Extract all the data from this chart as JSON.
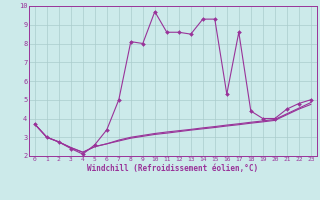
{
  "title": "",
  "xlabel": "Windchill (Refroidissement éolien,°C)",
  "background_color": "#cceaea",
  "grid_color": "#aacccc",
  "line_color": "#993399",
  "xlim": [
    -0.5,
    23.5
  ],
  "ylim": [
    2,
    10
  ],
  "xticks": [
    0,
    1,
    2,
    3,
    4,
    5,
    6,
    7,
    8,
    9,
    10,
    11,
    12,
    13,
    14,
    15,
    16,
    17,
    18,
    19,
    20,
    21,
    22,
    23
  ],
  "yticks": [
    2,
    3,
    4,
    5,
    6,
    7,
    8,
    9,
    10
  ],
  "line1_x": [
    0,
    1,
    2,
    3,
    4,
    5,
    6,
    7,
    8,
    9,
    10,
    11,
    12,
    13,
    14,
    15,
    16,
    17,
    18,
    19,
    20,
    21,
    22,
    23
  ],
  "line1_y": [
    3.7,
    3.0,
    2.75,
    2.4,
    2.1,
    2.6,
    3.4,
    5.0,
    8.1,
    8.0,
    9.7,
    8.6,
    8.6,
    8.5,
    9.3,
    9.3,
    5.3,
    8.6,
    4.4,
    4.0,
    4.0,
    4.5,
    4.8,
    5.0
  ],
  "line2_x": [
    0,
    1,
    2,
    3,
    4,
    5,
    6,
    7,
    8,
    9,
    10,
    11,
    12,
    13,
    14,
    15,
    16,
    17,
    18,
    19,
    20,
    21,
    22,
    23
  ],
  "line2_y": [
    3.7,
    3.0,
    2.75,
    2.45,
    2.2,
    2.5,
    2.65,
    2.8,
    2.95,
    3.05,
    3.15,
    3.22,
    3.3,
    3.38,
    3.45,
    3.52,
    3.6,
    3.67,
    3.75,
    3.82,
    3.9,
    4.2,
    4.5,
    4.75
  ],
  "line3_x": [
    0,
    1,
    2,
    3,
    4,
    5,
    6,
    7,
    8,
    9,
    10,
    11,
    12,
    13,
    14,
    15,
    16,
    17,
    18,
    19,
    20,
    21,
    22,
    23
  ],
  "line3_y": [
    3.7,
    3.0,
    2.75,
    2.45,
    2.2,
    2.5,
    2.65,
    2.85,
    3.0,
    3.1,
    3.2,
    3.28,
    3.35,
    3.42,
    3.5,
    3.57,
    3.65,
    3.72,
    3.8,
    3.87,
    3.95,
    4.25,
    4.55,
    4.85
  ]
}
